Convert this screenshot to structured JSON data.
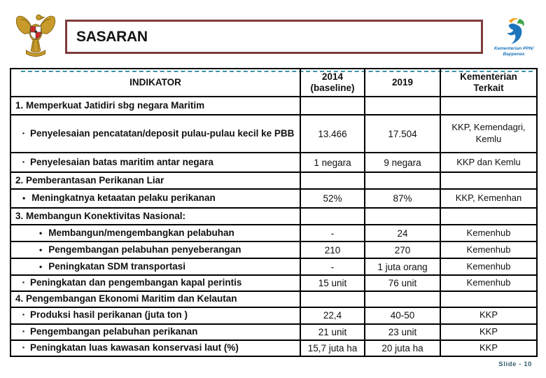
{
  "slide": {
    "title": "SASARAN",
    "footer": "Slide - 10",
    "logos": {
      "garuda": "garuda-pancasila-emblem",
      "bappenas_caption": "Kementerian PPN/\nBappenas"
    },
    "colors": {
      "title_border": "#7E3B3B",
      "dashed_line": "#3A93A5",
      "footer_text": "#33606C",
      "table_border": "#000000",
      "logo_blue": "#1F75BC",
      "logo_green": "#3FA548",
      "logo_orange": "#F6A01A",
      "garuda_gold": "#C79A2B",
      "garuda_dark": "#8A6914",
      "shield_red": "#CE2B2B"
    }
  },
  "table": {
    "headers": [
      {
        "text": "INDIKATOR"
      },
      {
        "text": "2014\n(baseline)"
      },
      {
        "text": "2019"
      },
      {
        "text": "Kementerian\nTerkait"
      }
    ],
    "rows": [
      {
        "type": "section",
        "bullet": "",
        "indent": 0,
        "label": "1.  Memperkuat Jatidiri sbg negara Maritim",
        "baseline": "",
        "target": "",
        "ministry": ""
      },
      {
        "type": "item",
        "bullet": "▪",
        "indent": 1,
        "label": "Penyelesaian pencatatan/deposit pulau-pulau kecil ke PBB",
        "baseline": "13.466",
        "target": "17.504",
        "ministry": "KKP, Kemendagri, Kemlu"
      },
      {
        "type": "item",
        "bullet": "▪",
        "indent": 1,
        "label": "Penyelesaian batas maritim antar negara",
        "baseline": "1 negara",
        "target": "9 negara",
        "ministry": "KKP dan Kemlu"
      },
      {
        "type": "section",
        "bullet": "",
        "indent": 0,
        "label": "2.  Pemberantasan Perikanan Liar",
        "baseline": "",
        "target": "",
        "ministry": ""
      },
      {
        "type": "item",
        "bullet": "•",
        "indent": 1,
        "label": "Meningkatnya ketaatan pelaku perikanan",
        "baseline": "52%",
        "target": "87%",
        "ministry": "KKP, Kemenhan"
      },
      {
        "type": "section",
        "bullet": "",
        "indent": 0,
        "label": "3.   Membangun Konektivitas Nasional:",
        "baseline": "",
        "target": "",
        "ministry": ""
      },
      {
        "type": "item",
        "bullet": "•",
        "indent": 2,
        "label": "Membangun/mengembangkan pelabuhan",
        "baseline": "-",
        "target": "24",
        "ministry": "Kemenhub"
      },
      {
        "type": "item",
        "bullet": "•",
        "indent": 2,
        "label": "Pengembangan pelabuhan penyeberangan",
        "baseline": "210",
        "target": "270",
        "ministry": "Kemenhub"
      },
      {
        "type": "item",
        "bullet": "•",
        "indent": 2,
        "label": "Peningkatan SDM transportasi",
        "baseline": "-",
        "target": "1 juta orang",
        "ministry": "Kemenhub"
      },
      {
        "type": "item",
        "bullet": "▪",
        "indent": 1,
        "label": "Peningkatan dan pengembangan kapal perintis",
        "baseline": "15 unit",
        "target": "76 unit",
        "ministry": "Kemenhub"
      },
      {
        "type": "section",
        "bullet": "",
        "indent": 0,
        "label": "4.   Pengembangan Ekonomi Maritim dan Kelautan",
        "baseline": "",
        "target": "",
        "ministry": ""
      },
      {
        "type": "item",
        "bullet": "▪",
        "indent": 1,
        "label": "Produksi hasil perikanan (juta ton )",
        "baseline": "22,4",
        "target": "40-50",
        "ministry": "KKP"
      },
      {
        "type": "item",
        "bullet": "▪",
        "indent": 1,
        "label": "Pengembangan pelabuhan perikanan",
        "baseline": "21 unit",
        "target": "23 unit",
        "ministry": "KKP"
      },
      {
        "type": "item",
        "bullet": "▪",
        "indent": 1,
        "label": "Peningkatan luas kawasan konservasi laut (%)",
        "baseline": "15,7 juta ha",
        "target": "20 juta ha",
        "ministry": "KKP"
      }
    ]
  }
}
